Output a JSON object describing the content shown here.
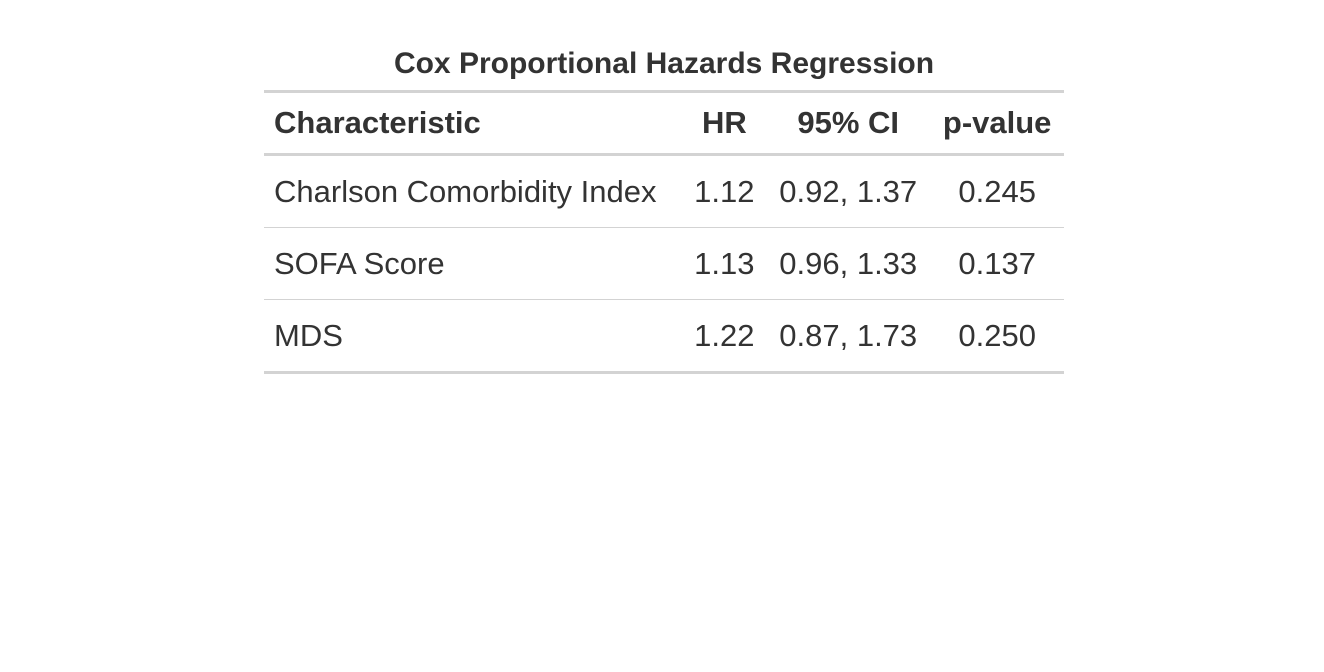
{
  "table": {
    "title": "Cox Proportional Hazards Regression",
    "columns": [
      "Characteristic",
      "HR",
      "95% CI",
      "p-value"
    ],
    "rows": [
      {
        "characteristic": "Charlson Comorbidity Index",
        "hr": "1.12",
        "ci": "0.92, 1.37",
        "p": "0.245"
      },
      {
        "characteristic": "SOFA Score",
        "hr": "1.13",
        "ci": "0.96, 1.33",
        "p": "0.137"
      },
      {
        "characteristic": "MDS",
        "hr": "1.22",
        "ci": "0.87, 1.73",
        "p": "0.250"
      }
    ]
  }
}
